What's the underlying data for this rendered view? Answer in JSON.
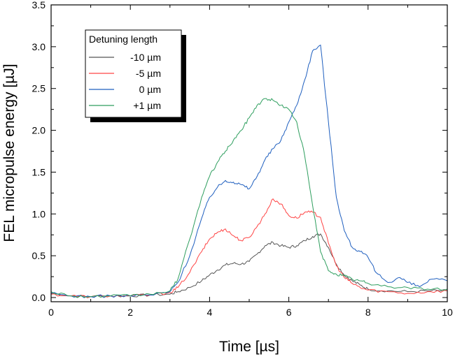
{
  "chart_data": {
    "type": "line",
    "title": "",
    "xlabel": "Time [µs]",
    "ylabel": "FEL micropulse energy [µJ]",
    "xlim": [
      0,
      10
    ],
    "ylim": [
      -0.05,
      3.5
    ],
    "x_ticks": [
      0,
      2,
      4,
      6,
      8,
      10
    ],
    "x_tick_labels": [
      "0",
      "2",
      "4",
      "6",
      "8",
      "10"
    ],
    "y_ticks": [
      0.0,
      0.5,
      1.0,
      1.5,
      2.0,
      2.5,
      3.0,
      3.5
    ],
    "y_tick_labels": [
      "0.0",
      "0.5",
      "1.0",
      "1.5",
      "2.0",
      "2.5",
      "3.0",
      "3.5"
    ],
    "grid": false,
    "legend": {
      "title": "Detuning length",
      "placement": "top-left"
    },
    "series": [
      {
        "name": "-10 µm",
        "color": "#555555",
        "x": [
          0,
          0.5,
          1,
          1.5,
          2,
          2.5,
          3,
          3.2,
          3.5,
          3.8,
          4,
          4.2,
          4.4,
          4.6,
          4.8,
          5,
          5.2,
          5.4,
          5.6,
          5.8,
          6,
          6.2,
          6.4,
          6.6,
          6.8,
          7,
          7.2,
          7.4,
          7.6,
          7.8,
          8,
          8.5,
          9,
          9.5,
          10
        ],
        "y": [
          0.05,
          0.02,
          0.01,
          0.02,
          0.02,
          0.03,
          0.04,
          0.07,
          0.12,
          0.2,
          0.27,
          0.33,
          0.39,
          0.41,
          0.4,
          0.43,
          0.52,
          0.62,
          0.66,
          0.62,
          0.6,
          0.62,
          0.68,
          0.73,
          0.76,
          0.6,
          0.4,
          0.27,
          0.2,
          0.15,
          0.1,
          0.08,
          0.07,
          0.08,
          0.08
        ]
      },
      {
        "name": "-5 µm",
        "color": "#ff4444",
        "x": [
          0,
          0.5,
          1,
          1.5,
          2,
          2.5,
          3,
          3.2,
          3.5,
          3.8,
          4,
          4.2,
          4.4,
          4.6,
          4.8,
          5,
          5.2,
          5.4,
          5.6,
          5.8,
          6,
          6.2,
          6.4,
          6.6,
          6.8,
          7,
          7.2,
          7.4,
          7.6,
          7.8,
          8,
          8.5,
          9,
          9.5,
          10
        ],
        "y": [
          0.04,
          0.02,
          0.01,
          0.02,
          0.02,
          0.03,
          0.06,
          0.12,
          0.3,
          0.55,
          0.7,
          0.78,
          0.82,
          0.74,
          0.68,
          0.72,
          0.85,
          1.0,
          1.18,
          1.12,
          0.98,
          0.95,
          1.02,
          1.02,
          0.96,
          0.65,
          0.38,
          0.24,
          0.17,
          0.12,
          0.09,
          0.07,
          0.05,
          0.07,
          0.08
        ]
      },
      {
        "name": "0 µm",
        "color": "#1f5fbf",
        "x": [
          0,
          0.5,
          1,
          1.5,
          2,
          2.5,
          3,
          3.2,
          3.5,
          3.8,
          4,
          4.2,
          4.4,
          4.6,
          4.8,
          5,
          5.2,
          5.4,
          5.6,
          5.8,
          6,
          6.2,
          6.4,
          6.6,
          6.8,
          7,
          7.2,
          7.4,
          7.6,
          7.8,
          8,
          8.2,
          8.5,
          8.8,
          9,
          9.3,
          9.6,
          10
        ],
        "y": [
          0.05,
          0.02,
          0.01,
          0.02,
          0.02,
          0.03,
          0.07,
          0.18,
          0.5,
          0.95,
          1.2,
          1.32,
          1.4,
          1.38,
          1.35,
          1.3,
          1.45,
          1.65,
          1.78,
          1.88,
          2.1,
          2.3,
          2.6,
          2.95,
          3.02,
          2.1,
          1.2,
          0.8,
          0.6,
          0.55,
          0.48,
          0.3,
          0.18,
          0.24,
          0.18,
          0.13,
          0.22,
          0.2
        ]
      },
      {
        "name": "+1 µm",
        "color": "#2e9e5e",
        "x": [
          0,
          0.5,
          1,
          1.5,
          2,
          2.5,
          3,
          3.2,
          3.5,
          3.8,
          4,
          4.2,
          4.4,
          4.6,
          4.8,
          5,
          5.2,
          5.4,
          5.6,
          5.8,
          6,
          6.2,
          6.4,
          6.6,
          6.8,
          7,
          7.2,
          7.4,
          7.6,
          7.8,
          8,
          8.5,
          9,
          9.5,
          10
        ],
        "y": [
          0.07,
          0.02,
          0.01,
          0.02,
          0.02,
          0.04,
          0.08,
          0.22,
          0.7,
          1.2,
          1.45,
          1.62,
          1.75,
          1.88,
          2.0,
          2.15,
          2.3,
          2.38,
          2.36,
          2.3,
          2.25,
          2.1,
          1.7,
          1.1,
          0.55,
          0.32,
          0.28,
          0.26,
          0.22,
          0.2,
          0.17,
          0.13,
          0.12,
          0.1,
          0.1
        ]
      }
    ]
  }
}
